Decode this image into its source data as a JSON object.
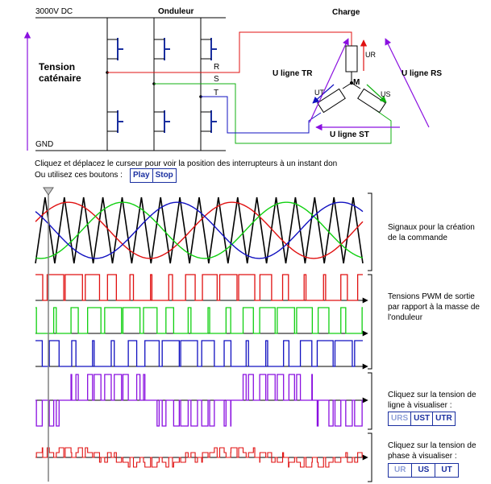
{
  "labels": {
    "supply": "3000V DC",
    "gnd": "GND",
    "onduleur": "Onduleur",
    "charge": "Charge",
    "tension_title": "Tension caténaire",
    "phase_r": "R",
    "phase_s": "S",
    "phase_t": "T",
    "ur": "UR",
    "ut": "UT",
    "us": "US",
    "motor": "M",
    "u_ligne_tr": "U ligne TR",
    "u_ligne_rs": "U ligne RS",
    "u_ligne_st": "U ligne ST"
  },
  "instructions": {
    "line1": "Cliquez et déplacez le curseur pour voir la position des interrupteurs à un instant don",
    "line2": "Ou utilisez ces boutons :"
  },
  "controls": {
    "play": "Play",
    "stop": "Stop"
  },
  "annotations": {
    "signals": "Signaux pour la création de la commande",
    "pwm": "Tensions PWM de sortie par rapport à la masse de l'onduleur",
    "line_voltage": "Cliquez sur la tension de ligne à visualiser :",
    "phase_voltage": "Cliquez sur la tension de phase à visualiser :"
  },
  "line_buttons": [
    {
      "label": "URS",
      "active": false
    },
    {
      "label": "UST",
      "active": true
    },
    {
      "label": "UTR",
      "active": true
    }
  ],
  "phase_buttons": [
    {
      "label": "UR",
      "active": false
    },
    {
      "label": "US",
      "active": true
    },
    {
      "label": "UT",
      "active": true
    }
  ],
  "colors": {
    "r": "#e01010",
    "s": "#10d010",
    "t": "#1010c0",
    "line": "#8a10e0",
    "carrier": "#000000",
    "accent": "#1a2fa0"
  },
  "waveform": {
    "carrier_cycles": 17,
    "modulation_cycles": 2
  }
}
